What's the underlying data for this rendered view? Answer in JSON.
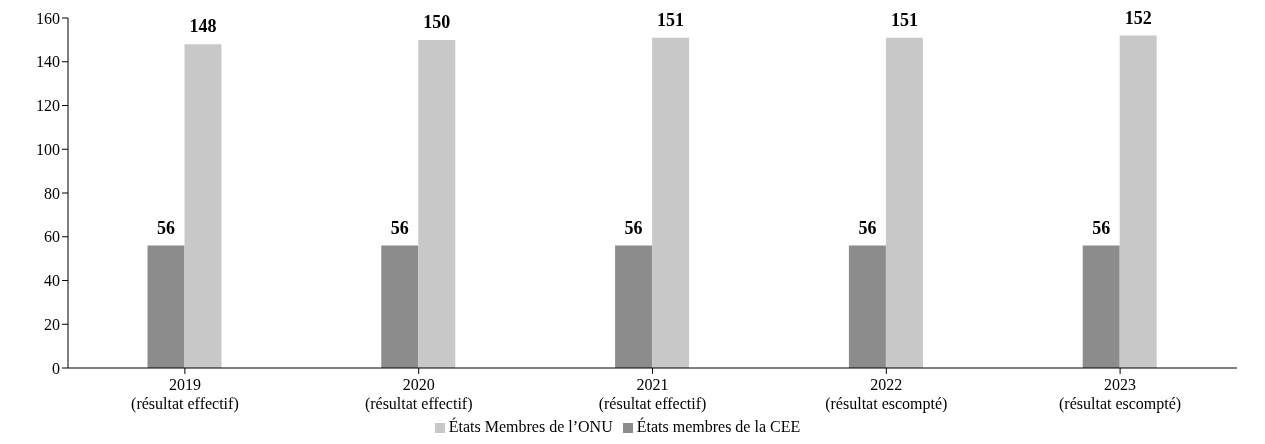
{
  "chart_data": {
    "type": "bar",
    "categories": [
      "2019\n(résultat effectif)",
      "2020\n(résultat effectif)",
      "2021\n(résultat effectif)",
      "2022\n(résultat escompté)",
      "2023\n(résultat escompté)"
    ],
    "series": [
      {
        "name": "États membres de la CEE",
        "color": "#8c8c8c",
        "values": [
          56,
          56,
          56,
          56,
          56
        ]
      },
      {
        "name": "États Membres de l’ONU",
        "color": "#c8c8c8",
        "values": [
          148,
          150,
          151,
          151,
          152
        ]
      }
    ],
    "ylim": [
      0,
      160
    ],
    "yticks": [
      0,
      20,
      40,
      60,
      80,
      100,
      120,
      140,
      160
    ],
    "data_labels": true,
    "legend": "bottom",
    "grid": false
  }
}
